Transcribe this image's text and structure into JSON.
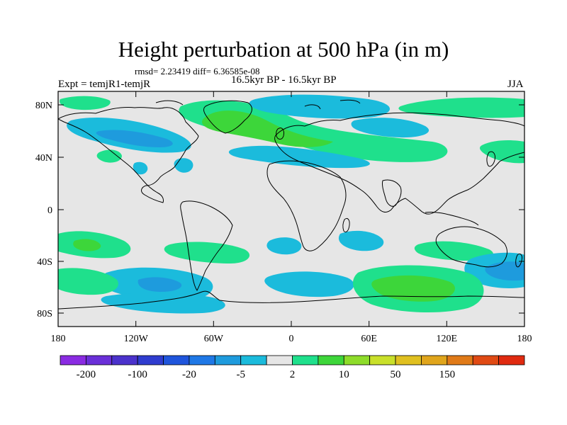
{
  "title": "Height perturbation at 500 hPa (in m)",
  "stats_line": "rmsd= 2.23419 diff= 6.36585e-08",
  "left_label": "Expt = temjR1-temjR",
  "center_label": "16.5kyr BP - 16.5kyr BP",
  "right_label": "JJA",
  "lat_ticks": [
    "80N",
    "40N",
    "0",
    "40S",
    "80S"
  ],
  "lon_ticks": [
    "180",
    "120W",
    "60W",
    "0",
    "60E",
    "120E",
    "180"
  ],
  "colorbar": {
    "labels": [
      "-200",
      "-100",
      "-20",
      "-5",
      "2",
      "10",
      "50",
      "150"
    ],
    "colors": [
      "#8a2be2",
      "#6a2fd8",
      "#4b32cc",
      "#2f3ccf",
      "#1f55dc",
      "#1f78e6",
      "#1e9bdd",
      "#1bbbdc",
      "#e6e6e6",
      "#1fe08c",
      "#3dd63a",
      "#8edc2a",
      "#c9e02a",
      "#e0c020",
      "#e0a51c",
      "#e07a18",
      "#e04a14",
      "#e02a10"
    ]
  },
  "colors": {
    "ocean_background": "#e6e6e6",
    "coastline": "#000000",
    "light_green": "#1fe08c",
    "mid_green": "#3dd63a",
    "light_blue": "#1bbbdc",
    "mid_blue": "#1e9bdd"
  }
}
